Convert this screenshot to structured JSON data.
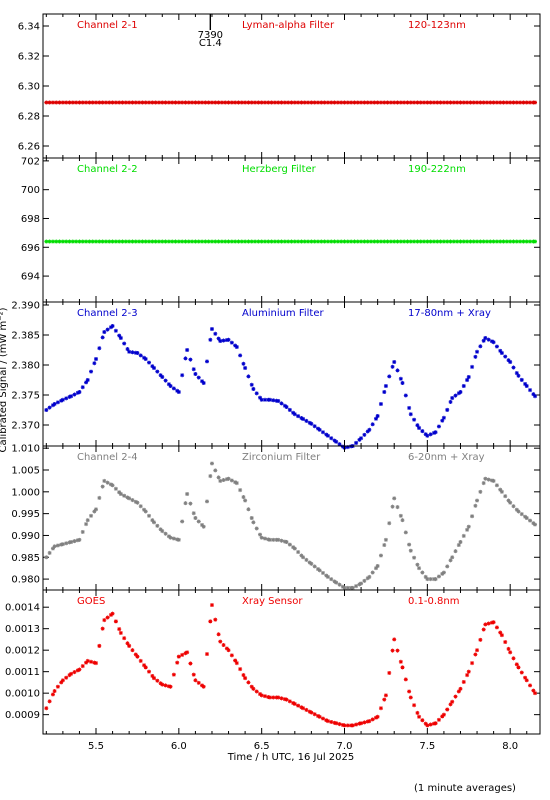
{
  "figure": {
    "xlabel": "Time / h UTC, 16 Jul 2025",
    "ylabel": "Calibrated Signal / (mW m⁻²)",
    "footnote": "(1 minute averages)",
    "marker": {
      "time": "7390",
      "label": "C1.4",
      "x": 6.19
    },
    "xticks": [
      "5.5",
      "6.0",
      "6.5",
      "7.0",
      "7.5",
      "8.0"
    ]
  },
  "colors": {
    "red": "#dd0000",
    "green": "#00dd00",
    "blue": "#0000cc",
    "gray": "#808080",
    "goes_red": "#ee0000"
  },
  "chart_data": [
    {
      "type": "scatter",
      "channel": "Channel 2-1",
      "filter": "Lyman-alpha Filter",
      "band": "120-123nm",
      "color": "red",
      "xlim": [
        5.18,
        8.18
      ],
      "ylim": [
        6.252,
        6.348
      ],
      "yticks": [
        "6.34",
        "6.32",
        "6.30",
        "6.28",
        "6.26"
      ],
      "x": [
        5.2,
        8.15
      ],
      "y": [
        6.289,
        6.289
      ]
    },
    {
      "type": "scatter",
      "channel": "Channel 2-2",
      "filter": "Herzberg Filter",
      "band": "190-222nm",
      "color": "green",
      "xlim": [
        5.18,
        8.18
      ],
      "ylim": [
        692.2,
        702.2
      ],
      "yticks": [
        "702",
        "700",
        "698",
        "696",
        "694"
      ],
      "x": [
        5.2,
        8.15
      ],
      "y": [
        696.4,
        696.4
      ]
    },
    {
      "type": "scatter",
      "channel": "Channel 2-3",
      "filter": "Aluminium Filter",
      "band": "17-80nm + Xray",
      "color": "blue",
      "xlim": [
        5.18,
        8.18
      ],
      "ylim": [
        2.3665,
        2.3905
      ],
      "yticks": [
        "2.390",
        "2.385",
        "2.380",
        "2.375",
        "2.370"
      ],
      "x": [
        5.2,
        5.25,
        5.3,
        5.35,
        5.4,
        5.45,
        5.5,
        5.55,
        5.6,
        5.65,
        5.7,
        5.75,
        5.8,
        5.85,
        5.9,
        5.95,
        6.0,
        6.05,
        6.1,
        6.15,
        6.2,
        6.25,
        6.3,
        6.35,
        6.4,
        6.45,
        6.5,
        6.55,
        6.6,
        6.65,
        6.7,
        6.75,
        6.8,
        6.85,
        6.9,
        6.95,
        7.0,
        7.05,
        7.1,
        7.15,
        7.2,
        7.25,
        7.3,
        7.35,
        7.4,
        7.45,
        7.5,
        7.55,
        7.6,
        7.65,
        7.7,
        7.75,
        7.8,
        7.85,
        7.9,
        7.95,
        8.0,
        8.05,
        8.1,
        8.15
      ],
      "y": [
        2.3725,
        2.3735,
        2.3742,
        2.3748,
        2.3755,
        2.3775,
        2.381,
        2.3855,
        2.3865,
        2.3845,
        2.3822,
        2.382,
        2.381,
        2.3795,
        2.378,
        2.3765,
        2.3755,
        2.3825,
        2.3785,
        2.377,
        2.386,
        2.384,
        2.3842,
        2.383,
        2.3795,
        2.376,
        2.3742,
        2.3742,
        2.374,
        2.373,
        2.3718,
        2.371,
        2.3702,
        2.3692,
        2.3682,
        2.3672,
        2.3662,
        2.3665,
        2.3678,
        2.3692,
        2.3715,
        2.3765,
        2.3805,
        2.377,
        2.3718,
        2.3695,
        2.3682,
        2.3688,
        2.3712,
        2.3745,
        2.3755,
        2.378,
        2.3822,
        2.3845,
        2.3838,
        2.382,
        2.3805,
        2.3782,
        2.3765,
        2.3748
      ]
    },
    {
      "type": "scatter",
      "channel": "Channel 2-4",
      "filter": "Zirconium Filter",
      "band": "6-20nm + Xray",
      "color": "gray",
      "xlim": [
        5.18,
        8.18
      ],
      "ylim": [
        0.9775,
        1.0105
      ],
      "yticks": [
        "1.010",
        "1.005",
        "1.000",
        "0.995",
        "0.990",
        "0.985",
        "0.980"
      ],
      "x": [
        5.2,
        5.25,
        5.3,
        5.35,
        5.4,
        5.45,
        5.5,
        5.55,
        5.6,
        5.65,
        5.7,
        5.75,
        5.8,
        5.85,
        5.9,
        5.95,
        6.0,
        6.05,
        6.1,
        6.15,
        6.2,
        6.25,
        6.3,
        6.35,
        6.4,
        6.45,
        6.5,
        6.55,
        6.6,
        6.65,
        6.7,
        6.75,
        6.8,
        6.85,
        6.9,
        6.95,
        7.0,
        7.05,
        7.1,
        7.15,
        7.2,
        7.25,
        7.3,
        7.35,
        7.4,
        7.45,
        7.5,
        7.55,
        7.6,
        7.65,
        7.7,
        7.75,
        7.8,
        7.85,
        7.9,
        7.95,
        8.0,
        8.05,
        8.1,
        8.15
      ],
      "y": [
        0.985,
        0.9875,
        0.988,
        0.9885,
        0.989,
        0.9935,
        0.996,
        1.0025,
        1.0015,
        0.9995,
        0.9985,
        0.9975,
        0.9955,
        0.993,
        0.991,
        0.9895,
        0.989,
        0.9995,
        0.994,
        0.992,
        1.0065,
        1.0025,
        1.003,
        1.002,
        0.998,
        0.993,
        0.9895,
        0.989,
        0.989,
        0.9885,
        0.987,
        0.985,
        0.9835,
        0.982,
        0.9805,
        0.9792,
        0.978,
        0.978,
        0.979,
        0.9805,
        0.983,
        0.989,
        0.9985,
        0.9935,
        0.9865,
        0.9825,
        0.98,
        0.98,
        0.9815,
        0.985,
        0.9885,
        0.992,
        0.998,
        1.003,
        1.0025,
        1.0,
        0.9975,
        0.9955,
        0.994,
        0.9925
      ]
    },
    {
      "type": "scatter",
      "channel": "GOES",
      "filter": "Xray Sensor",
      "band": "0.1-0.8nm",
      "color": "goes_red",
      "xlim": [
        5.18,
        8.18
      ],
      "ylim": [
        0.00081,
        0.00148
      ],
      "yticks": [
        "0.0014",
        "0.0013",
        "0.0012",
        "0.0011",
        "0.0010",
        "0.0009"
      ],
      "x": [
        5.2,
        5.25,
        5.3,
        5.35,
        5.4,
        5.45,
        5.5,
        5.55,
        5.6,
        5.65,
        5.7,
        5.75,
        5.8,
        5.85,
        5.9,
        5.95,
        6.0,
        6.05,
        6.1,
        6.15,
        6.2,
        6.25,
        6.3,
        6.35,
        6.4,
        6.45,
        6.5,
        6.55,
        6.6,
        6.65,
        6.7,
        6.75,
        6.8,
        6.85,
        6.9,
        6.95,
        7.0,
        7.05,
        7.1,
        7.15,
        7.2,
        7.25,
        7.3,
        7.35,
        7.4,
        7.45,
        7.5,
        7.55,
        7.6,
        7.65,
        7.7,
        7.75,
        7.8,
        7.85,
        7.9,
        7.95,
        8.0,
        8.05,
        8.1,
        8.15
      ],
      "y": [
        0.00093,
        0.00101,
        0.00106,
        0.00109,
        0.00111,
        0.00115,
        0.00114,
        0.00134,
        0.00137,
        0.00128,
        0.00122,
        0.00117,
        0.00112,
        0.00107,
        0.00104,
        0.00103,
        0.00117,
        0.00119,
        0.00106,
        0.00103,
        0.00141,
        0.00124,
        0.0012,
        0.00114,
        0.00107,
        0.00102,
        0.00099,
        0.00098,
        0.00098,
        0.00097,
        0.00095,
        0.00093,
        0.00091,
        0.00089,
        0.00087,
        0.00086,
        0.00085,
        0.00085,
        0.00086,
        0.00087,
        0.00089,
        0.00099,
        0.00125,
        0.00112,
        0.00098,
        0.00089,
        0.00085,
        0.00086,
        0.0009,
        0.00096,
        0.00102,
        0.0011,
        0.0012,
        0.00132,
        0.00133,
        0.00127,
        0.00119,
        0.00112,
        0.00106,
        0.001
      ]
    }
  ]
}
